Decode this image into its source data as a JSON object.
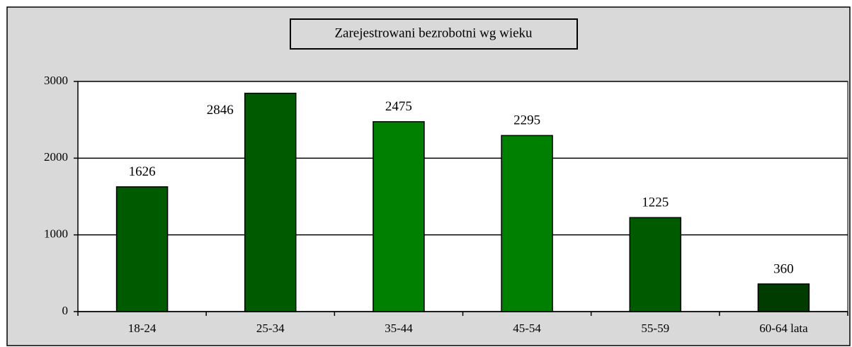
{
  "chart_data": {
    "type": "bar",
    "title": "Zarejestrowani bezrobotni wg wieku",
    "categories": [
      "18-24",
      "25-34",
      "35-44",
      "45-54",
      "55-59",
      "60-64 lata"
    ],
    "values": [
      1626,
      2846,
      2475,
      2295,
      1225,
      360
    ],
    "colors": [
      "#005a00",
      "#005a00",
      "#008000",
      "#008000",
      "#005a00",
      "#003c00"
    ],
    "ylim": [
      0,
      3000
    ],
    "yticks": [
      0,
      1000,
      2000,
      3000
    ],
    "grid": true
  }
}
